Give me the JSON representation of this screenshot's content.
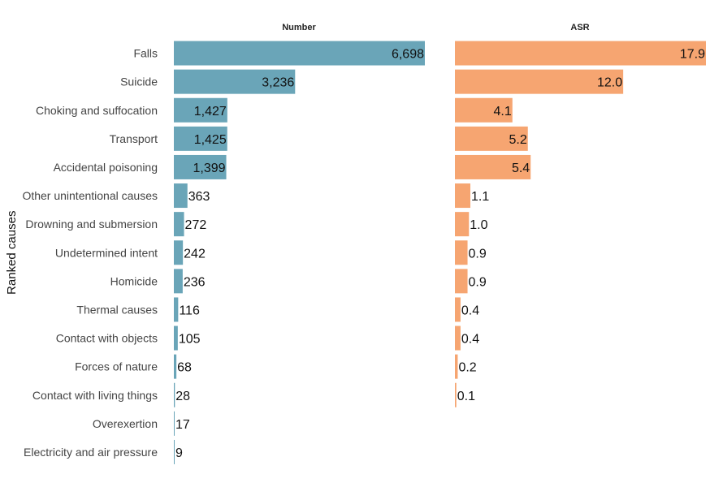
{
  "chart_data": {
    "type": "bar",
    "orientation": "horizontal",
    "ylabel": "Ranked causes",
    "grid": false,
    "legend": "none",
    "categories": [
      "Falls",
      "Suicide",
      "Choking and suffocation",
      "Transport",
      "Accidental poisoning",
      "Other unintentional causes",
      "Drowning and submersion",
      "Undetermined intent",
      "Homicide",
      "Thermal causes",
      "Contact with objects",
      "Forces of nature",
      "Contact with living things",
      "Overexertion",
      "Electricity and air pressure"
    ],
    "panels": [
      {
        "title": "Number",
        "color": "#6aa5b8",
        "values": [
          6698,
          3236,
          1427,
          1425,
          1399,
          363,
          272,
          242,
          236,
          116,
          105,
          68,
          28,
          17,
          9
        ],
        "labels": [
          "6,698",
          "3,236",
          "1,427",
          "1,425",
          "1,399",
          "363",
          "272",
          "242",
          "236",
          "116",
          "105",
          "68",
          "28",
          "17",
          "9"
        ]
      },
      {
        "title": "ASR",
        "color": "#f6a571",
        "values": [
          17.9,
          12.0,
          4.1,
          5.2,
          5.4,
          1.1,
          1.0,
          0.9,
          0.9,
          0.4,
          0.4,
          0.2,
          0.1,
          null,
          null
        ],
        "labels": [
          "17.9",
          "12.0",
          "4.1",
          "5.2",
          "5.4",
          "1.1",
          "1.0",
          "0.9",
          "0.9",
          "0.4",
          "0.4",
          "0.2",
          "0.1",
          "",
          ""
        ]
      }
    ]
  }
}
